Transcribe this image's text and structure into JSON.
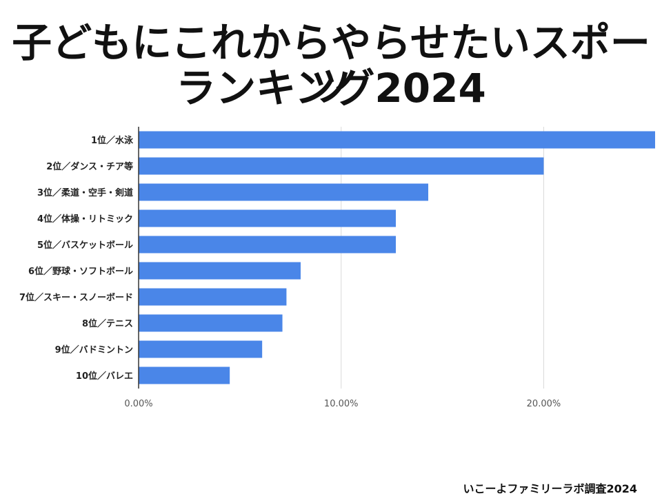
{
  "chart_data": {
    "type": "bar",
    "orientation": "horizontal",
    "title_lines": [
      "子どもにこれからやらせたいスポーツ",
      "ランキング2024"
    ],
    "categories": [
      "1位／水泳",
      "2位／ダンス・チア等",
      "3位／柔道・空手・剣道",
      "4位／体操・リトミック",
      "5位／バスケットボール",
      "6位／野球・ソフトボール",
      "7位／スキー・スノーボード",
      "8位／テニス",
      "9位／バドミントン",
      "10位／バレエ"
    ],
    "values": [
      25.5,
      20.0,
      14.3,
      12.7,
      12.7,
      8.0,
      7.3,
      7.1,
      6.1,
      4.5
    ],
    "unit": "%",
    "xlim": [
      0,
      25.5
    ],
    "x_ticks": [
      0,
      10,
      20
    ],
    "x_tick_labels": [
      "0.00%",
      "10.00%",
      "20.00%"
    ],
    "grid": true,
    "legend": "none",
    "bar_color": "#4a86e8"
  },
  "source": "いこーよファミリーラボ調査2024"
}
